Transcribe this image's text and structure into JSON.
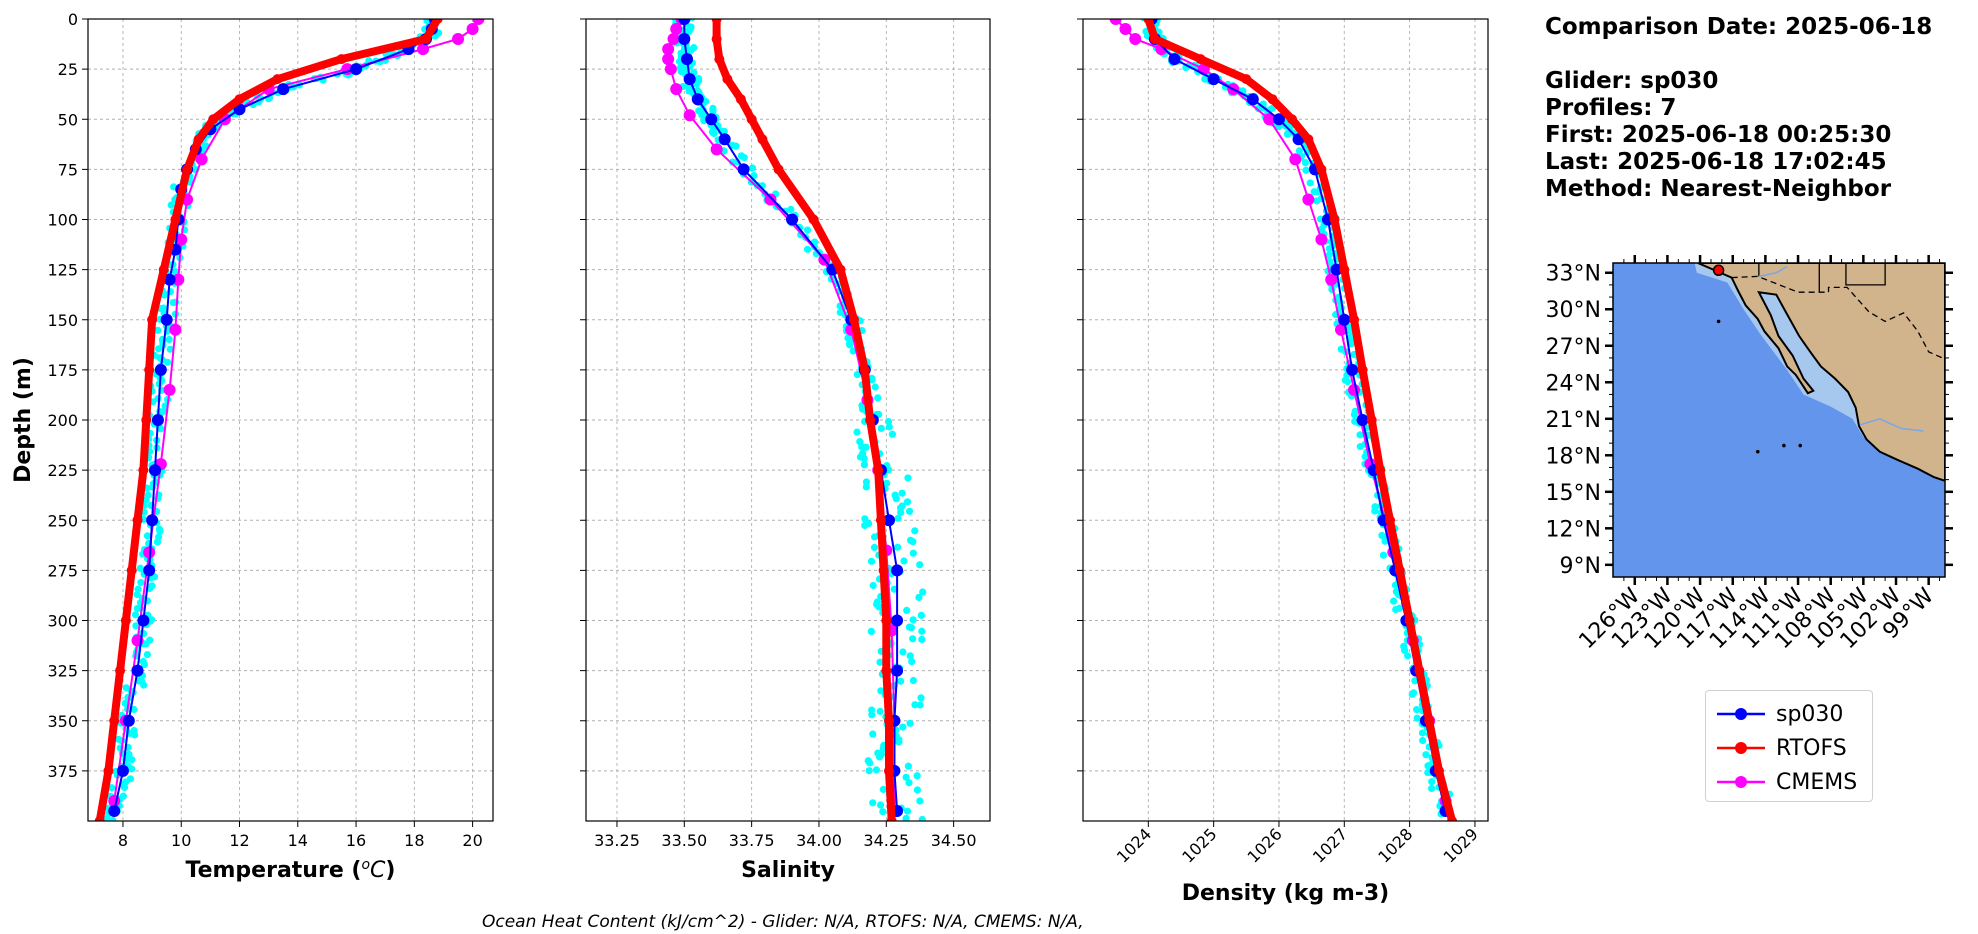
{
  "info": {
    "comparison_date": "Comparison Date: 2025-06-18",
    "glider": "Glider: sp030",
    "profiles": "Profiles: 7",
    "first": "First: 2025-06-18 00:25:30",
    "last": "Last: 2025-06-18 17:02:45",
    "method": "Method: Nearest-Neighbor"
  },
  "ohc_text": "Ocean Heat Content (kJ/cm^2) - Glider: N/A,  RTOFS: N/A,  CMEMS: N/A,",
  "legend": [
    {
      "label": "sp030",
      "color": "#0000ff"
    },
    {
      "label": "RTOFS",
      "color": "#ff0000"
    },
    {
      "label": "CMEMS",
      "color": "#ff00ff"
    }
  ],
  "colors": {
    "glider_raw": "#00ffff",
    "glider": "#0000ff",
    "rtofs": "#ff0000",
    "cmems": "#ff00ff",
    "ocean": "#6495ed",
    "shelf": "#a6c8ee",
    "land": "#d2b48c"
  },
  "chart_data": [
    {
      "type": "line",
      "xlabel": "Temperature ($^{o}C$)",
      "ylabel": "Depth (m)",
      "xlim": [
        6.8,
        20.7
      ],
      "ylim": [
        400,
        0
      ],
      "xticks": [
        8,
        10,
        12,
        14,
        16,
        18,
        20
      ],
      "yticks": [
        0,
        25,
        50,
        75,
        100,
        125,
        150,
        175,
        200,
        225,
        250,
        275,
        300,
        325,
        350,
        375
      ],
      "grid": true,
      "series": [
        {
          "name": "sp030",
          "depth": [
            0,
            5,
            10,
            15,
            25,
            35,
            45,
            55,
            65,
            75,
            85,
            100,
            115,
            130,
            150,
            175,
            200,
            225,
            250,
            275,
            300,
            325,
            350,
            375,
            395
          ],
          "values": [
            18.7,
            18.6,
            18.4,
            17.8,
            16.0,
            13.5,
            12.0,
            11.0,
            10.5,
            10.2,
            10.0,
            9.9,
            9.8,
            9.6,
            9.5,
            9.3,
            9.2,
            9.1,
            9.0,
            8.9,
            8.7,
            8.5,
            8.2,
            8.0,
            7.7
          ]
        },
        {
          "name": "RTOFS",
          "depth": [
            0,
            10,
            20,
            30,
            40,
            50,
            60,
            75,
            100,
            125,
            150,
            175,
            200,
            225,
            250,
            275,
            300,
            325,
            350,
            375,
            400
          ],
          "values": [
            18.8,
            18.4,
            15.5,
            13.3,
            12.0,
            11.1,
            10.6,
            10.2,
            9.8,
            9.4,
            9.0,
            8.9,
            8.8,
            8.7,
            8.5,
            8.3,
            8.1,
            7.9,
            7.7,
            7.5,
            7.2
          ]
        },
        {
          "name": "CMEMS",
          "depth": [
            0,
            5,
            10,
            15,
            25,
            35,
            50,
            70,
            90,
            110,
            130,
            155,
            185,
            222,
            266,
            310,
            350,
            390
          ],
          "values": [
            20.2,
            20.0,
            19.5,
            18.3,
            15.7,
            13.0,
            11.5,
            10.7,
            10.2,
            10.0,
            9.9,
            9.8,
            9.6,
            9.3,
            8.9,
            8.5,
            8.1,
            7.7
          ]
        }
      ]
    },
    {
      "type": "line",
      "xlabel": "Salinity",
      "ylabel": "",
      "xlim": [
        33.135,
        34.635
      ],
      "ylim": [
        400,
        0
      ],
      "xticks": [
        33.25,
        33.5,
        33.75,
        34.0,
        34.25,
        34.5
      ],
      "xticklabels": [
        "33.25",
        "33.50",
        "33.75",
        "34.00",
        "34.25",
        "34.50"
      ],
      "grid": true,
      "series": [
        {
          "name": "sp030",
          "depth": [
            0,
            10,
            20,
            30,
            40,
            50,
            60,
            75,
            100,
            125,
            150,
            175,
            200,
            225,
            250,
            275,
            300,
            325,
            350,
            375,
            395
          ],
          "values": [
            33.5,
            33.5,
            33.51,
            33.52,
            33.55,
            33.6,
            33.65,
            33.72,
            33.9,
            34.05,
            34.12,
            34.17,
            34.2,
            34.23,
            34.26,
            34.29,
            34.29,
            34.29,
            34.28,
            34.28,
            34.29
          ]
        },
        {
          "name": "RTOFS",
          "depth": [
            0,
            10,
            20,
            30,
            40,
            50,
            60,
            75,
            100,
            125,
            150,
            175,
            200,
            225,
            250,
            275,
            300,
            325,
            350,
            375,
            400
          ],
          "values": [
            33.62,
            33.62,
            33.63,
            33.66,
            33.71,
            33.75,
            33.79,
            33.85,
            33.98,
            34.08,
            34.13,
            34.17,
            34.19,
            34.22,
            34.23,
            34.24,
            34.25,
            34.25,
            34.26,
            34.26,
            34.27
          ]
        },
        {
          "name": "CMEMS",
          "depth": [
            0,
            5,
            10,
            15,
            20,
            25,
            35,
            48,
            65,
            90,
            120,
            155,
            190,
            225,
            265,
            305,
            350,
            395
          ],
          "values": [
            33.49,
            33.47,
            33.46,
            33.44,
            33.44,
            33.45,
            33.47,
            33.52,
            33.62,
            33.82,
            34.02,
            34.12,
            34.18,
            34.22,
            34.25,
            34.27,
            34.28,
            34.28
          ]
        }
      ]
    },
    {
      "type": "line",
      "xlabel": "Density (kg m-3)",
      "ylabel": "",
      "xlim": [
        1023.0,
        1029.2
      ],
      "ylim": [
        400,
        0
      ],
      "xticks": [
        1024,
        1025,
        1026,
        1027,
        1028,
        1029
      ],
      "grid": true,
      "series": [
        {
          "name": "sp030",
          "depth": [
            0,
            10,
            20,
            30,
            40,
            50,
            60,
            75,
            100,
            125,
            150,
            175,
            200,
            225,
            250,
            275,
            300,
            325,
            350,
            375,
            395
          ],
          "values": [
            1024.05,
            1024.1,
            1024.4,
            1025.0,
            1025.6,
            1026.0,
            1026.3,
            1026.55,
            1026.75,
            1026.88,
            1027.0,
            1027.12,
            1027.28,
            1027.45,
            1027.6,
            1027.78,
            1027.95,
            1028.1,
            1028.25,
            1028.4,
            1028.55
          ]
        },
        {
          "name": "RTOFS",
          "depth": [
            0,
            10,
            20,
            30,
            40,
            50,
            60,
            75,
            100,
            125,
            150,
            175,
            200,
            225,
            250,
            275,
            300,
            325,
            350,
            375,
            400
          ],
          "values": [
            1024.0,
            1024.1,
            1024.8,
            1025.5,
            1025.9,
            1026.2,
            1026.45,
            1026.65,
            1026.85,
            1027.0,
            1027.15,
            1027.28,
            1027.42,
            1027.55,
            1027.7,
            1027.85,
            1028.0,
            1028.15,
            1028.3,
            1028.45,
            1028.65
          ]
        },
        {
          "name": "CMEMS",
          "depth": [
            0,
            5,
            10,
            15,
            25,
            35,
            50,
            70,
            90,
            110,
            130,
            155,
            185,
            222,
            266,
            310,
            350,
            390
          ],
          "values": [
            1023.5,
            1023.65,
            1023.8,
            1024.2,
            1024.85,
            1025.3,
            1025.85,
            1026.25,
            1026.45,
            1026.65,
            1026.8,
            1026.95,
            1027.15,
            1027.4,
            1027.75,
            1028.05,
            1028.3,
            1028.55
          ]
        }
      ]
    }
  ],
  "map": {
    "lat_ticks": [
      "33°N",
      "30°N",
      "27°N",
      "24°N",
      "21°N",
      "18°N",
      "15°N",
      "12°N",
      "9°N"
    ],
    "lon_ticks": [
      "126°W",
      "123°W",
      "120°W",
      "117°W",
      "114°W",
      "111°W",
      "108°W",
      "105°W",
      "102°W",
      "99°W"
    ],
    "glider_position": {
      "lat": 33.2,
      "lon": -118.3
    }
  }
}
